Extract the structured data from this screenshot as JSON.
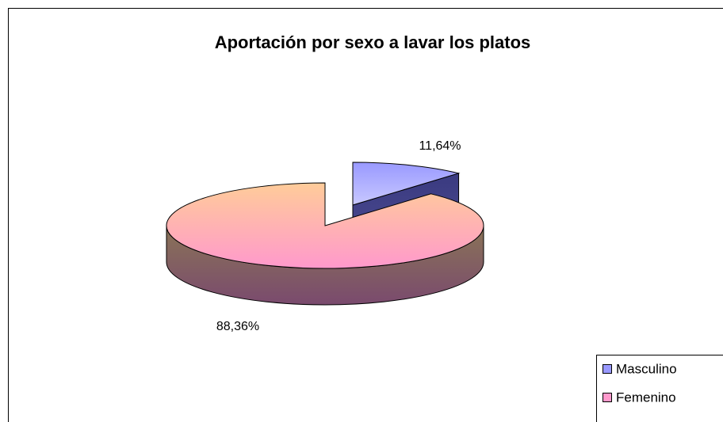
{
  "chart_data": {
    "type": "pie",
    "title": "Aportación por sexo a lavar los platos",
    "categories": [
      "Masculino",
      "Femenino"
    ],
    "values": [
      11.64,
      88.36
    ],
    "value_labels": [
      "11,64%",
      "88,36%"
    ],
    "colors": [
      "#9999ff",
      "#ff99cc"
    ],
    "legend": "bottom-right"
  }
}
